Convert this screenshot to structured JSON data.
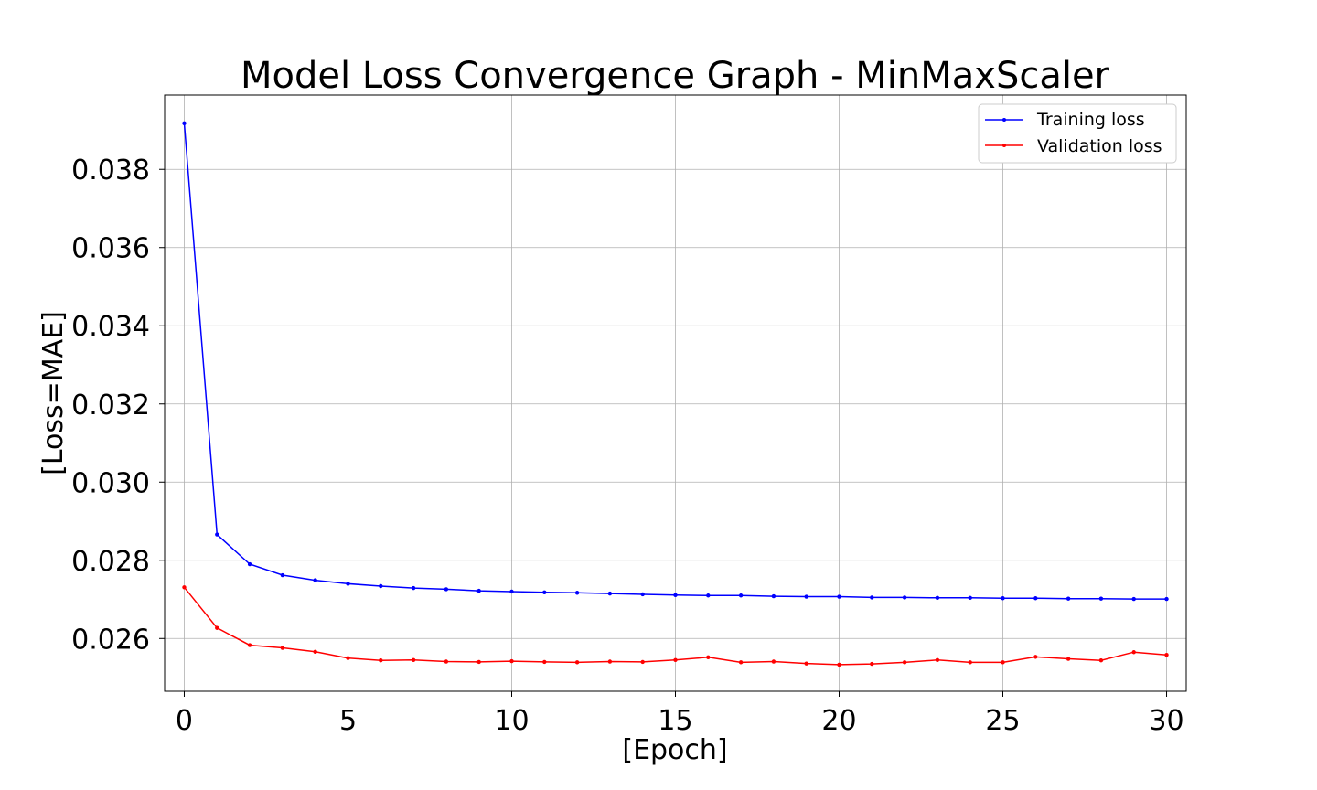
{
  "chart_data": {
    "type": "line",
    "title": "Model Loss Convergence Graph - MinMaxScaler",
    "xlabel": "[Epoch]",
    "ylabel": "[Loss=MAE]",
    "xlim": [
      -0.6,
      30.6
    ],
    "ylim": [
      0.02465,
      0.0399
    ],
    "x_ticks": [
      0,
      5,
      10,
      15,
      20,
      25,
      30
    ],
    "y_ticks": [
      0.026,
      0.028,
      0.03,
      0.032,
      0.034,
      0.036,
      0.038
    ],
    "grid": true,
    "legend_position": "top-right",
    "x": [
      0,
      1,
      2,
      3,
      4,
      5,
      6,
      7,
      8,
      9,
      10,
      11,
      12,
      13,
      14,
      15,
      16,
      17,
      18,
      19,
      20,
      21,
      22,
      23,
      24,
      25,
      26,
      27,
      28,
      29,
      30
    ],
    "series": [
      {
        "name": "Training loss",
        "color": "#0000ff",
        "values": [
          0.03918,
          0.02866,
          0.0279,
          0.02762,
          0.02749,
          0.0274,
          0.02734,
          0.02729,
          0.02726,
          0.02722,
          0.0272,
          0.02718,
          0.02717,
          0.02715,
          0.02713,
          0.02711,
          0.0271,
          0.0271,
          0.02708,
          0.02707,
          0.02707,
          0.02705,
          0.02705,
          0.02704,
          0.02704,
          0.02703,
          0.02703,
          0.02702,
          0.02702,
          0.02701,
          0.02701
        ]
      },
      {
        "name": "Validation loss",
        "color": "#ff0000",
        "values": [
          0.02731,
          0.02627,
          0.02583,
          0.02576,
          0.02566,
          0.0255,
          0.02544,
          0.02545,
          0.02541,
          0.0254,
          0.02542,
          0.0254,
          0.02539,
          0.02541,
          0.0254,
          0.02545,
          0.02552,
          0.02539,
          0.02541,
          0.02536,
          0.02533,
          0.02535,
          0.02539,
          0.02545,
          0.02539,
          0.02539,
          0.02553,
          0.02548,
          0.02544,
          0.02565,
          0.02558
        ]
      }
    ]
  }
}
